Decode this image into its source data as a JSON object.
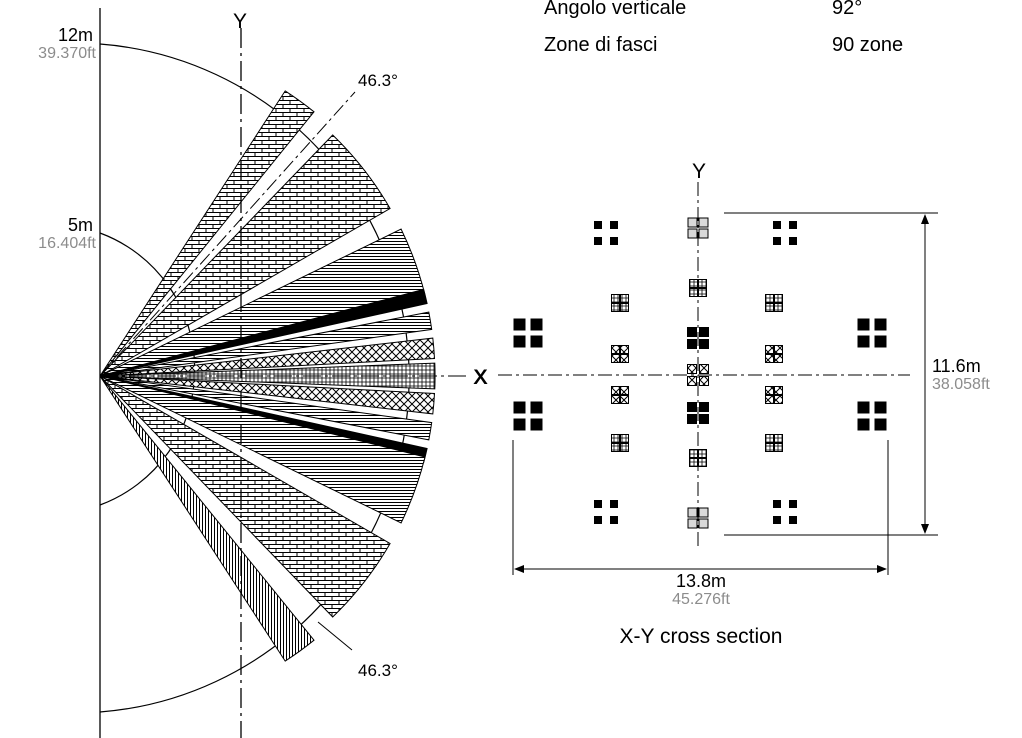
{
  "specs": [
    {
      "label": "Angolo verticale",
      "value": "92°"
    },
    {
      "label": "Zone di fasci",
      "value": "90 zone"
    }
  ],
  "side_view": {
    "axis_y": "Y",
    "axis_x": "X",
    "radius_outer": {
      "metric": "12m",
      "imperial": "39.370ft"
    },
    "radius_inner": {
      "metric": "5m",
      "imperial": "16.404ft"
    },
    "angle_top": "46.3°",
    "angle_bottom": "46.3°"
  },
  "cross_section": {
    "axis_y": "Y",
    "axis_x": "X",
    "height": {
      "metric": "11.6m",
      "imperial": "38.058ft"
    },
    "width": {
      "metric": "13.8m",
      "imperial": "45.276ft"
    },
    "caption": "X-Y cross section"
  },
  "colors": {
    "ink": "#000000",
    "grey_text": "#8c8c8c",
    "light_fill": "#d9d9d9"
  }
}
